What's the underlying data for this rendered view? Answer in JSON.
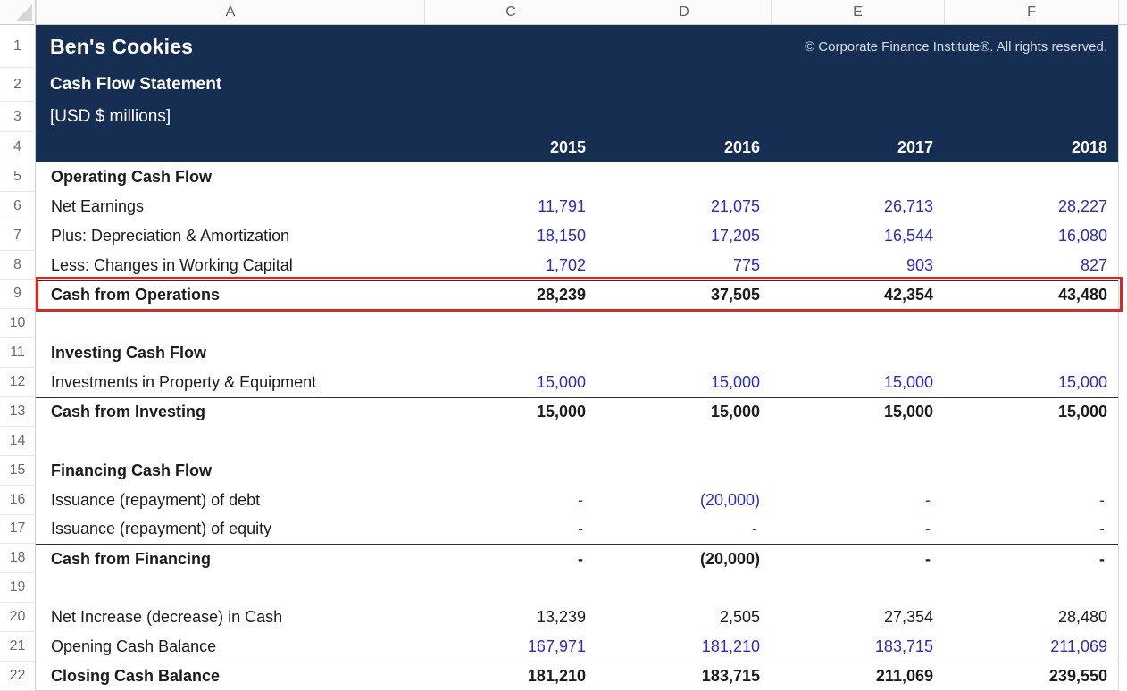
{
  "header": {
    "column_letters": [
      "A",
      "C",
      "D",
      "E",
      "F"
    ],
    "fixed_row_nums": [
      "1",
      "2",
      "3",
      "4"
    ],
    "title": "Ben's Cookies",
    "copyright": "© Corporate Finance Institute®. All rights reserved.",
    "subtitle": "Cash Flow Statement",
    "units": "[USD $ millions]",
    "years": [
      "2015",
      "2016",
      "2017",
      "2018"
    ]
  },
  "colors": {
    "navy_header": "#152E52",
    "input_value_blue": "#2B2BC4",
    "highlight_red": "#E2241C"
  },
  "rows": [
    {
      "num": "5",
      "label": "Operating Cash Flow",
      "type": "section",
      "values": [
        "",
        "",
        "",
        ""
      ],
      "values_color": "black",
      "top_border": false
    },
    {
      "num": "6",
      "label": "Net Earnings",
      "type": "item",
      "values": [
        "11,791",
        "21,075",
        "26,713",
        "28,227"
      ],
      "values_color": "blue",
      "top_border": false
    },
    {
      "num": "7",
      "label": "Plus: Depreciation & Amortization",
      "type": "item",
      "values": [
        "18,150",
        "17,205",
        "16,544",
        "16,080"
      ],
      "values_color": "blue",
      "top_border": false
    },
    {
      "num": "8",
      "label": "Less: Changes in Working Capital",
      "type": "item",
      "values": [
        "1,702",
        "775",
        "903",
        "827"
      ],
      "values_color": "blue",
      "top_border": false
    },
    {
      "num": "9",
      "label": "Cash from Operations",
      "type": "total",
      "values": [
        "28,239",
        "37,505",
        "42,354",
        "43,480"
      ],
      "values_color": "black",
      "top_border": true,
      "highlighted": true
    },
    {
      "num": "10",
      "label": "",
      "type": "blank",
      "values": [
        "",
        "",
        "",
        ""
      ],
      "values_color": "black",
      "top_border": false
    },
    {
      "num": "11",
      "label": "Investing Cash Flow",
      "type": "section",
      "values": [
        "",
        "",
        "",
        ""
      ],
      "values_color": "black",
      "top_border": false
    },
    {
      "num": "12",
      "label": "Investments in Property & Equipment",
      "type": "item",
      "values": [
        "15,000",
        "15,000",
        "15,000",
        "15,000"
      ],
      "values_color": "blue",
      "top_border": false
    },
    {
      "num": "13",
      "label": "Cash from Investing",
      "type": "total",
      "values": [
        "15,000",
        "15,000",
        "15,000",
        "15,000"
      ],
      "values_color": "black",
      "top_border": true
    },
    {
      "num": "14",
      "label": "",
      "type": "blank",
      "values": [
        "",
        "",
        "",
        ""
      ],
      "values_color": "black",
      "top_border": false
    },
    {
      "num": "15",
      "label": "Financing Cash Flow",
      "type": "section",
      "values": [
        "",
        "",
        "",
        ""
      ],
      "values_color": "black",
      "top_border": false
    },
    {
      "num": "16",
      "label": "Issuance (repayment) of debt",
      "type": "item",
      "values": [
        "-",
        "(20,000)",
        "-",
        "-"
      ],
      "values_color": "blue",
      "top_border": false
    },
    {
      "num": "17",
      "label": "Issuance (repayment) of equity",
      "type": "item",
      "values": [
        "-",
        "-",
        "-",
        "-"
      ],
      "values_color": "blue",
      "top_border": false
    },
    {
      "num": "18",
      "label": "Cash from Financing",
      "type": "total",
      "values": [
        "-",
        "(20,000)",
        "-",
        "-"
      ],
      "values_color": "black",
      "top_border": true
    },
    {
      "num": "19",
      "label": "",
      "type": "blank",
      "values": [
        "",
        "",
        "",
        ""
      ],
      "values_color": "black",
      "top_border": false
    },
    {
      "num": "20",
      "label": "Net Increase (decrease) in Cash",
      "type": "item",
      "values": [
        "13,239",
        "2,505",
        "27,354",
        "28,480"
      ],
      "values_color": "black",
      "top_border": false
    },
    {
      "num": "21",
      "label": "Opening Cash Balance",
      "type": "item",
      "values": [
        "167,971",
        "181,210",
        "183,715",
        "211,069"
      ],
      "values_color": "blue",
      "top_border": false
    },
    {
      "num": "22",
      "label": "Closing Cash Balance",
      "type": "total",
      "values": [
        "181,210",
        "183,715",
        "211,069",
        "239,550"
      ],
      "values_color": "black",
      "top_border": true,
      "bottom_gridline": true
    }
  ]
}
